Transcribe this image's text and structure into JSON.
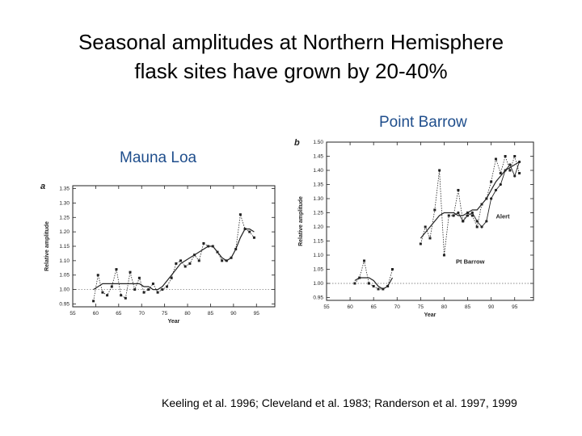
{
  "slide": {
    "title_line1": "Seasonal amplitudes at Northern Hemisphere",
    "title_line2": "flask sites have grown by 20-40%",
    "citation": "Keeling et al. 1996; Cleveland et al. 1983; Randerson et al. 1997, 1999"
  },
  "colors": {
    "label_blue": "#1f4e8c",
    "ink": "#222222"
  },
  "chart_data": [
    {
      "type": "line",
      "site_label": "Mauna Loa",
      "panel_letter": "a",
      "xlabel": "Year",
      "ylabel": "Relative amplitude",
      "xlim": [
        55,
        99
      ],
      "ylim": [
        0.94,
        1.36
      ],
      "xticks": [
        "55",
        "60",
        "65",
        "70",
        "75",
        "80",
        "85",
        "90",
        "95"
      ],
      "yticks": [
        "0.95",
        "1.00",
        "1.05",
        "1.10",
        "1.15",
        "1.20",
        "1.25",
        "1.30",
        "1.35"
      ],
      "reference_y": 1.0,
      "x": [
        59.5,
        60.5,
        61.5,
        62.5,
        63.5,
        64.5,
        65.5,
        66.5,
        67.5,
        68.5,
        69.5,
        70.5,
        71.5,
        72.5,
        73.5,
        74.5,
        75.5,
        76.5,
        77.5,
        78.5,
        79.5,
        80.5,
        81.5,
        82.5,
        83.5,
        84.5,
        85.5,
        86.5,
        87.5,
        88.5,
        89.5,
        90.5,
        91.5,
        92.5,
        93.5,
        94.5
      ],
      "series": [
        {
          "name": "",
          "style": "dotted-markers",
          "values": [
            0.96,
            1.05,
            0.99,
            0.98,
            1.01,
            1.07,
            0.98,
            0.97,
            1.06,
            1.0,
            1.04,
            0.99,
            1.0,
            1.02,
            0.99,
            1.0,
            1.01,
            1.04,
            1.09,
            1.1,
            1.08,
            1.09,
            1.12,
            1.1,
            1.16,
            1.15,
            1.15,
            1.13,
            1.1,
            1.1,
            1.11,
            1.14,
            1.26,
            1.21,
            1.2,
            1.18
          ]
        },
        {
          "name": "",
          "style": "solid-smooth",
          "values": [
            1.0,
            1.01,
            1.02,
            1.02,
            1.02,
            1.02,
            1.02,
            1.02,
            1.02,
            1.02,
            1.02,
            1.01,
            1.01,
            1.0,
            1.0,
            1.01,
            1.03,
            1.05,
            1.07,
            1.09,
            1.1,
            1.11,
            1.12,
            1.13,
            1.14,
            1.15,
            1.15,
            1.13,
            1.11,
            1.1,
            1.11,
            1.14,
            1.18,
            1.21,
            1.21,
            1.2
          ]
        }
      ]
    },
    {
      "type": "line",
      "site_label": "Point Barrow",
      "panel_letter": "b",
      "xlabel": "Year",
      "ylabel": "Relative amplitude",
      "xlim": [
        55,
        99
      ],
      "ylim": [
        0.94,
        1.5
      ],
      "xticks": [
        "55",
        "60",
        "65",
        "70",
        "75",
        "80",
        "85",
        "90",
        "95"
      ],
      "yticks": [
        "0.95",
        "1.00",
        "1.05",
        "1.10",
        "1.15",
        "1.20",
        "1.25",
        "1.30",
        "1.35",
        "1.40",
        "1.45",
        "1.50"
      ],
      "reference_y": 1.0,
      "annotations": [
        {
          "text": "Alert",
          "x": 91,
          "y": 1.23
        },
        {
          "text": "Pt Barrow",
          "x": 82.5,
          "y": 1.07
        }
      ],
      "x": [
        61,
        62,
        63,
        64,
        65,
        66,
        67,
        68,
        69,
        70,
        71,
        72,
        73,
        74,
        75,
        76,
        77,
        78,
        79,
        80,
        81,
        82,
        83,
        84,
        85,
        86,
        87,
        88,
        89,
        90,
        91,
        92,
        93,
        94,
        95,
        96
      ],
      "series": [
        {
          "name": "Pt Barrow",
          "style": "dotted-markers",
          "values": [
            1.0,
            1.02,
            1.08,
            1.0,
            0.99,
            0.98,
            0.98,
            0.99,
            1.05,
            null,
            null,
            null,
            null,
            null,
            1.14,
            1.2,
            1.16,
            1.26,
            1.4,
            1.1,
            1.24,
            1.24,
            1.33,
            1.22,
            1.25,
            1.24,
            1.2,
            1.28,
            1.3,
            1.36,
            1.44,
            1.39,
            1.45,
            1.4,
            1.45,
            1.39
          ]
        },
        {
          "name": "Alert",
          "style": "solid-markers",
          "values": [
            null,
            null,
            null,
            null,
            null,
            null,
            null,
            null,
            null,
            null,
            null,
            null,
            null,
            null,
            null,
            null,
            null,
            null,
            null,
            null,
            null,
            1.24,
            1.25,
            1.22,
            1.24,
            1.25,
            1.22,
            1.2,
            1.22,
            1.3,
            1.33,
            1.35,
            1.4,
            1.42,
            1.38,
            1.43
          ]
        },
        {
          "name": "",
          "style": "solid-smooth",
          "values": [
            1.01,
            1.02,
            1.02,
            1.02,
            1.01,
            0.99,
            0.98,
            0.99,
            1.02,
            null,
            null,
            null,
            null,
            null,
            1.16,
            1.18,
            1.2,
            1.22,
            1.24,
            1.25,
            1.25,
            1.25,
            1.24,
            1.24,
            1.25,
            1.26,
            1.26,
            1.28,
            1.3,
            1.33,
            1.36,
            1.38,
            1.4,
            1.41,
            1.42,
            1.43
          ]
        }
      ]
    }
  ]
}
